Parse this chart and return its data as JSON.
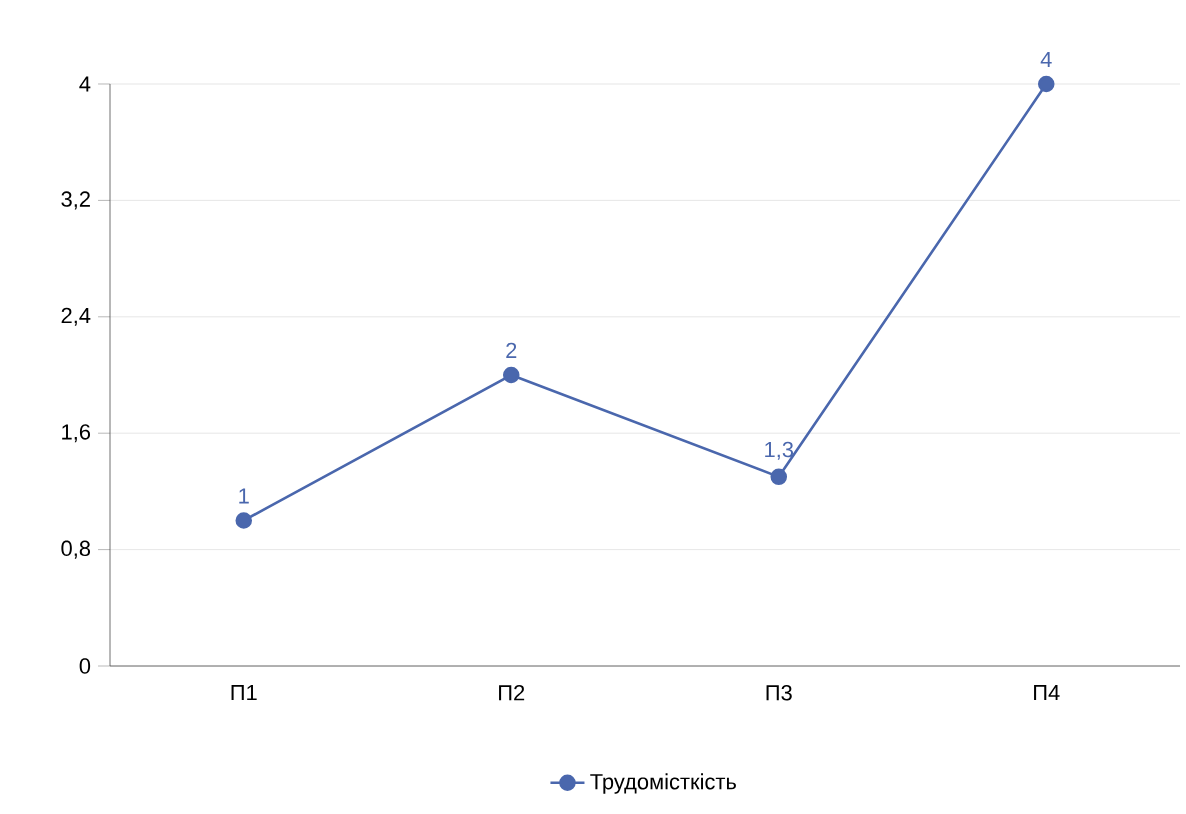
{
  "chart_data": {
    "type": "line",
    "categories": [
      "П1",
      "П2",
      "П3",
      "П4"
    ],
    "series": [
      {
        "name": "Трудомісткість",
        "color": "#4a67ad",
        "values": [
          1,
          2,
          1.3,
          4
        ],
        "value_labels": [
          "1",
          "2",
          "1,3",
          "4"
        ]
      }
    ],
    "ylim": [
      0,
      4
    ],
    "yticks": [
      0,
      {
        "value": 0.8,
        "label": "0,8"
      },
      {
        "value": 1.6,
        "label": "1,6"
      },
      {
        "value": 2.4,
        "label": "2,4"
      },
      {
        "value": 3.2,
        "label": "3,2"
      },
      4
    ],
    "grid": "y",
    "legend": "bottom",
    "marker": "circle"
  }
}
